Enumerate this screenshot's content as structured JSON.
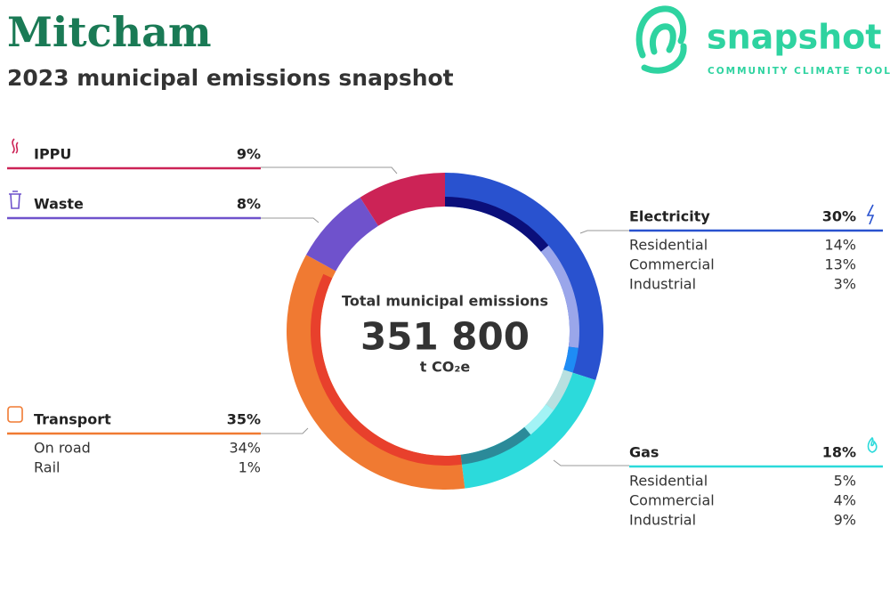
{
  "header": {
    "title": "Mitcham",
    "subtitle": "2023 municipal emissions snapshot"
  },
  "logo": {
    "name": "snapshot",
    "tagline": "COMMUNITY CLIMATE TOOL"
  },
  "chart_data": {
    "type": "donut",
    "center_label": "Total municipal emissions",
    "total": 351800,
    "total_label": "351 800",
    "unit": "t CO₂e",
    "segments": [
      {
        "name": "Electricity",
        "value": 30,
        "value_label": "30%",
        "color": "#2952cf",
        "parts": [
          {
            "name": "Residential",
            "value": 14,
            "value_label": "14%",
            "color": "#0b0f7a"
          },
          {
            "name": "Commercial",
            "value": 13,
            "value_label": "13%",
            "color": "#9aa6ea"
          },
          {
            "name": "Industrial",
            "value": 3,
            "value_label": "3%",
            "color": "#1e8cf5"
          }
        ]
      },
      {
        "name": "Gas",
        "value": 18,
        "value_label": "18%",
        "color": "#2cdadb",
        "parts": [
          {
            "name": "Residential",
            "value": 5,
            "value_label": "5%",
            "color": "#b8e0e0"
          },
          {
            "name": "Commercial",
            "value": 4,
            "value_label": "4%",
            "color": "#a3f3f5"
          },
          {
            "name": "Industrial",
            "value": 9,
            "value_label": "9%",
            "color": "#2b8a99"
          }
        ]
      },
      {
        "name": "Transport",
        "value": 35,
        "value_label": "35%",
        "color": "#f07a32",
        "parts": [
          {
            "name": "On road",
            "value": 34,
            "value_label": "34%",
            "color": "#e8402c"
          },
          {
            "name": "Rail",
            "value": 1,
            "value_label": "1%",
            "color": "#f07a32"
          }
        ]
      },
      {
        "name": "Waste",
        "value": 8,
        "value_label": "8%",
        "color": "#6f52cc"
      },
      {
        "name": "IPPU",
        "value": 9,
        "value_label": "9%",
        "color": "#cc2356"
      }
    ]
  }
}
